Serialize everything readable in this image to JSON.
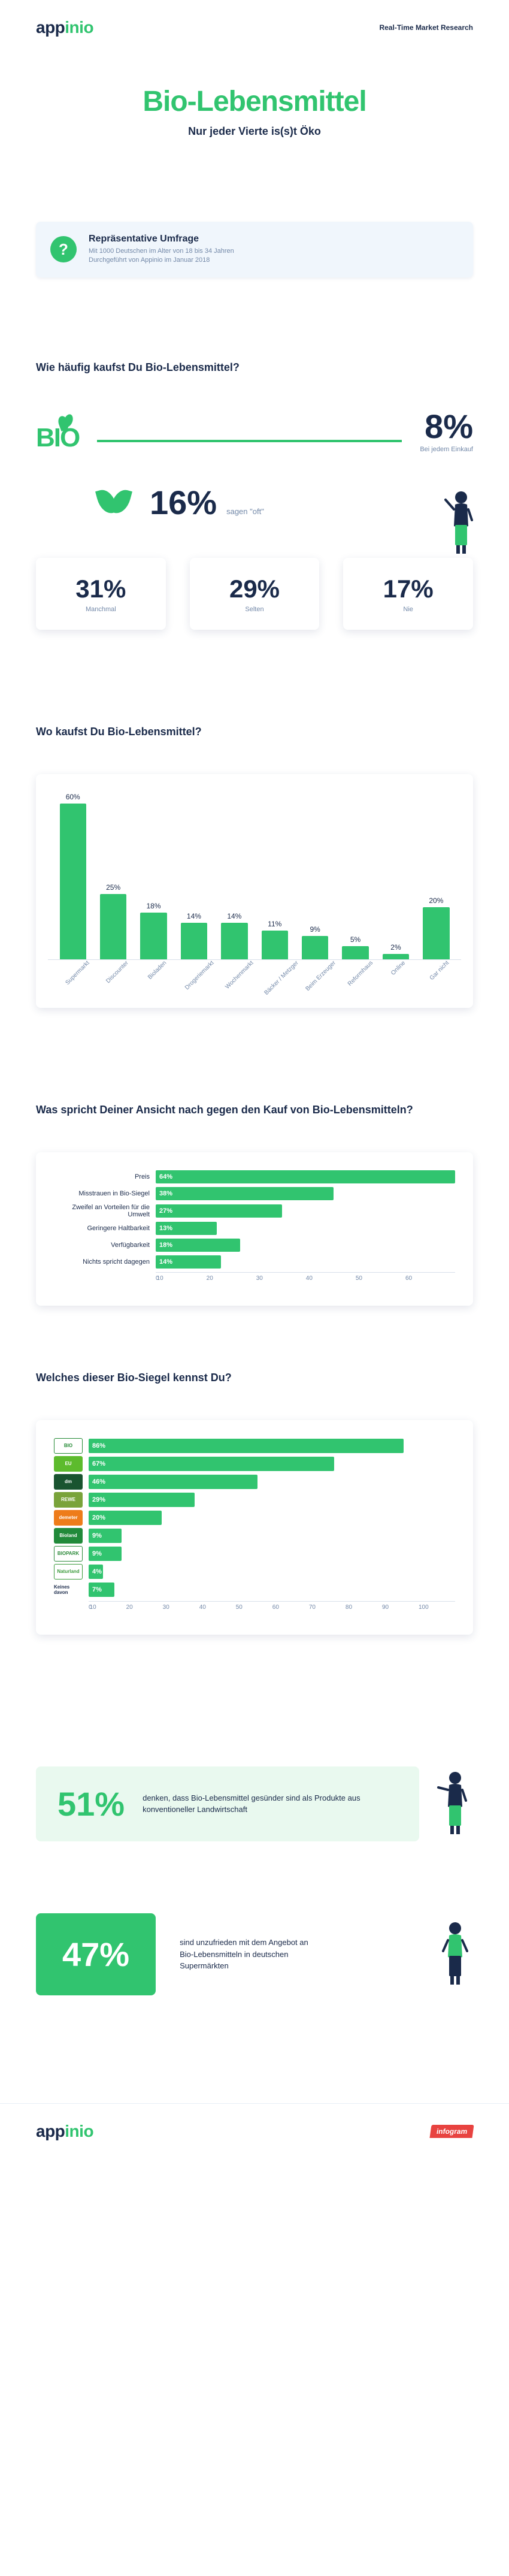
{
  "brand": {
    "name_a": "app",
    "name_b": "inio",
    "tagline": "Real-Time Market Research",
    "infogram": "infogram"
  },
  "title": "Bio-Lebensmittel",
  "subtitle": "Nur jeder Vierte is(s)t Öko",
  "survey": {
    "heading": "Repräsentative Umfrage",
    "line1": "Mit 1000 Deutschen im Alter von 18 bis 34 Jahren",
    "line2": "Durchgeführt von Appinio im Januar 2018"
  },
  "colors": {
    "primary": "#31c46f",
    "text": "#1a2a4a",
    "muted": "#7288a8",
    "card_bg": "#f0f6fc",
    "light_green": "#e9f9ef"
  },
  "q1": {
    "title": "Wie häufig kaufst Du Bio-Lebensmittel?",
    "top": {
      "pct": "8%",
      "label": "Bei jedem Einkauf"
    },
    "mid": {
      "pct": "16%",
      "label": "sagen \"oft\""
    },
    "cards": [
      {
        "pct": "31%",
        "label": "Manchmal"
      },
      {
        "pct": "29%",
        "label": "Selten"
      },
      {
        "pct": "17%",
        "label": "Nie"
      }
    ]
  },
  "q2": {
    "title": "Wo kaufst Du Bio-Lebensmittel?",
    "type": "bar",
    "ymax": 60,
    "color": "#31c46f",
    "categories": [
      "Supermarkt",
      "Discounter",
      "Bioladen",
      "Drogeriemarkt",
      "Wochenmarkt",
      "Bäcker / Metzger",
      "Beim Erzeuger",
      "Reformhaus",
      "Online",
      "Gar nicht"
    ],
    "values": [
      60,
      25,
      18,
      14,
      14,
      11,
      9,
      5,
      2,
      20
    ]
  },
  "q3": {
    "title": "Was spricht Deiner Ansicht nach gegen den Kauf von Bio-Lebensmitteln?",
    "type": "hbar",
    "xmax": 64,
    "color": "#31c46f",
    "ticks": [
      0,
      10,
      20,
      30,
      40,
      50,
      60
    ],
    "rows": [
      {
        "label": "Preis",
        "value": 64
      },
      {
        "label": "Misstrauen in Bio-Siegel",
        "value": 38
      },
      {
        "label": "Zweifel an Vorteilen für die Umwelt",
        "value": 27
      },
      {
        "label": "Geringere Haltbarkeit",
        "value": 13
      },
      {
        "label": "Verfügbarkeit",
        "value": 18
      },
      {
        "label": "Nichts spricht dagegen",
        "value": 14
      }
    ]
  },
  "q4": {
    "title": "Welches dieser Bio-Siegel kennst Du?",
    "type": "hbar",
    "xmax": 100,
    "color": "#31c46f",
    "ticks": [
      0,
      10,
      20,
      30,
      40,
      50,
      60,
      70,
      80,
      90,
      100
    ],
    "rows": [
      {
        "label": "BIO",
        "value": 86,
        "logo_bg": "#ffffff",
        "logo_color": "#238a34",
        "logo_border": "#238a34"
      },
      {
        "label": "EU",
        "value": 67,
        "logo_bg": "#5dbb2d",
        "logo_color": "#ffffff"
      },
      {
        "label": "dm",
        "value": 46,
        "logo_bg": "#1a5430",
        "logo_color": "#ffffff"
      },
      {
        "label": "REWE",
        "value": 29,
        "logo_bg": "#7aa33a",
        "logo_color": "#ffffff"
      },
      {
        "label": "demeter",
        "value": 20,
        "logo_bg": "#ee7c1a",
        "logo_color": "#ffffff"
      },
      {
        "label": "Bioland",
        "value": 9,
        "logo_bg": "#218a3a",
        "logo_color": "#ffffff"
      },
      {
        "label": "BIOPARK",
        "value": 9,
        "logo_bg": "#ffffff",
        "logo_color": "#2c8a3a",
        "logo_border": "#2c8a3a"
      },
      {
        "label": "Naturland",
        "value": 4,
        "logo_bg": "#ffffff",
        "logo_color": "#3a9a3a",
        "logo_border": "#3a9a3a"
      },
      {
        "label": "Keines davon",
        "value": 7,
        "logo_bg": "transparent",
        "logo_color": "#1a2a4a"
      }
    ]
  },
  "quote1": {
    "pct": "51%",
    "text": "denken, dass Bio-Lebensmittel gesünder sind als Produkte aus konventioneller Landwirtschaft"
  },
  "quote2": {
    "pct": "47%",
    "text": "sind unzufrieden mit dem Angebot an Bio-Lebensmitteln in deutschen Supermärkten"
  }
}
